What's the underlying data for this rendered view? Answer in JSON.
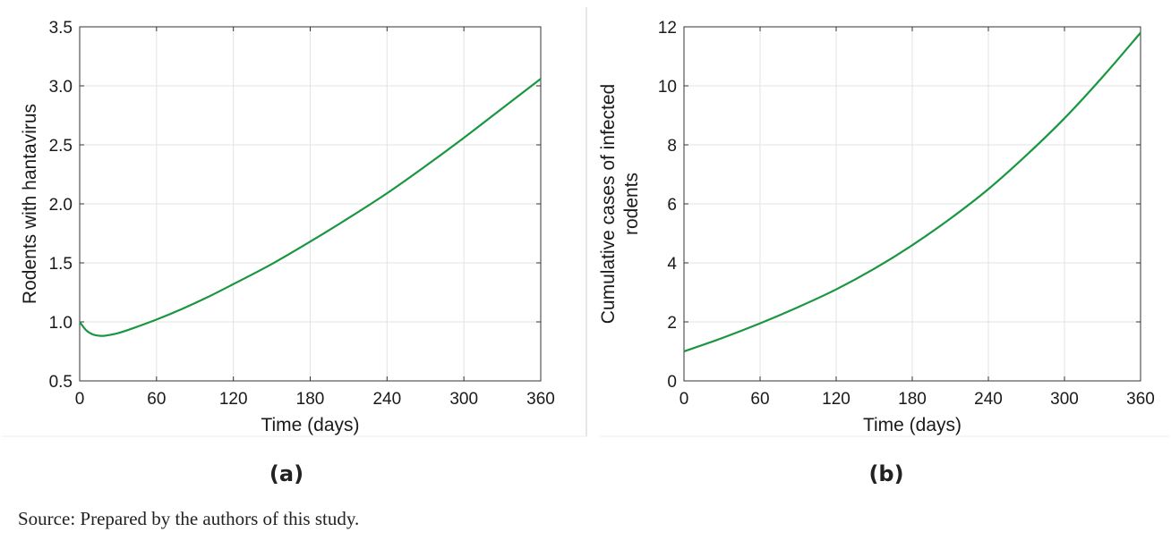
{
  "colors": {
    "line": "#1a9641",
    "grid": "#e3e3e3",
    "axis": "#333333"
  },
  "source_text": "Source: Prepared by the authors of this study.",
  "chart_data": [
    {
      "type": "line",
      "panel_label": "(a)",
      "xlabel": "Time (days)",
      "ylabel": "Rodents with hantavirus",
      "xlim": [
        0,
        360
      ],
      "ylim": [
        0.5,
        3.5
      ],
      "xticks": [
        0,
        60,
        120,
        180,
        240,
        300,
        360
      ],
      "yticks": [
        0.5,
        1.0,
        1.5,
        2.0,
        2.5,
        3.0,
        3.5
      ],
      "ytick_labels": [
        "0.5",
        "1.0",
        "1.5",
        "2.0",
        "2.5",
        "3.0",
        "3.5"
      ],
      "grid": true,
      "series": [
        {
          "x": [
            0,
            5,
            10,
            15,
            20,
            30,
            40,
            60,
            80,
            100,
            120,
            150,
            180,
            210,
            240,
            270,
            300,
            330,
            360
          ],
          "y": [
            1.0,
            0.93,
            0.895,
            0.883,
            0.883,
            0.905,
            0.94,
            1.02,
            1.11,
            1.21,
            1.32,
            1.49,
            1.68,
            1.88,
            2.09,
            2.32,
            2.56,
            2.81,
            3.06
          ]
        }
      ]
    },
    {
      "type": "line",
      "panel_label": "(b)",
      "xlabel": "Time (days)",
      "ylabel": "Cumulative cases of infected rodents",
      "ylabel_lines": [
        "Cumulative cases of infected",
        "rodents"
      ],
      "xlim": [
        0,
        360
      ],
      "ylim": [
        0,
        12
      ],
      "xticks": [
        0,
        60,
        120,
        180,
        240,
        300,
        360
      ],
      "yticks": [
        0,
        2,
        4,
        6,
        8,
        10,
        12
      ],
      "ytick_labels": [
        "0",
        "2",
        "4",
        "6",
        "8",
        "10",
        "12"
      ],
      "grid": true,
      "series": [
        {
          "x": [
            0,
            30,
            60,
            90,
            120,
            150,
            180,
            210,
            240,
            270,
            300,
            330,
            360
          ],
          "y": [
            1.0,
            1.45,
            1.95,
            2.5,
            3.1,
            3.8,
            4.6,
            5.5,
            6.5,
            7.65,
            8.9,
            10.3,
            11.8
          ]
        }
      ]
    }
  ]
}
